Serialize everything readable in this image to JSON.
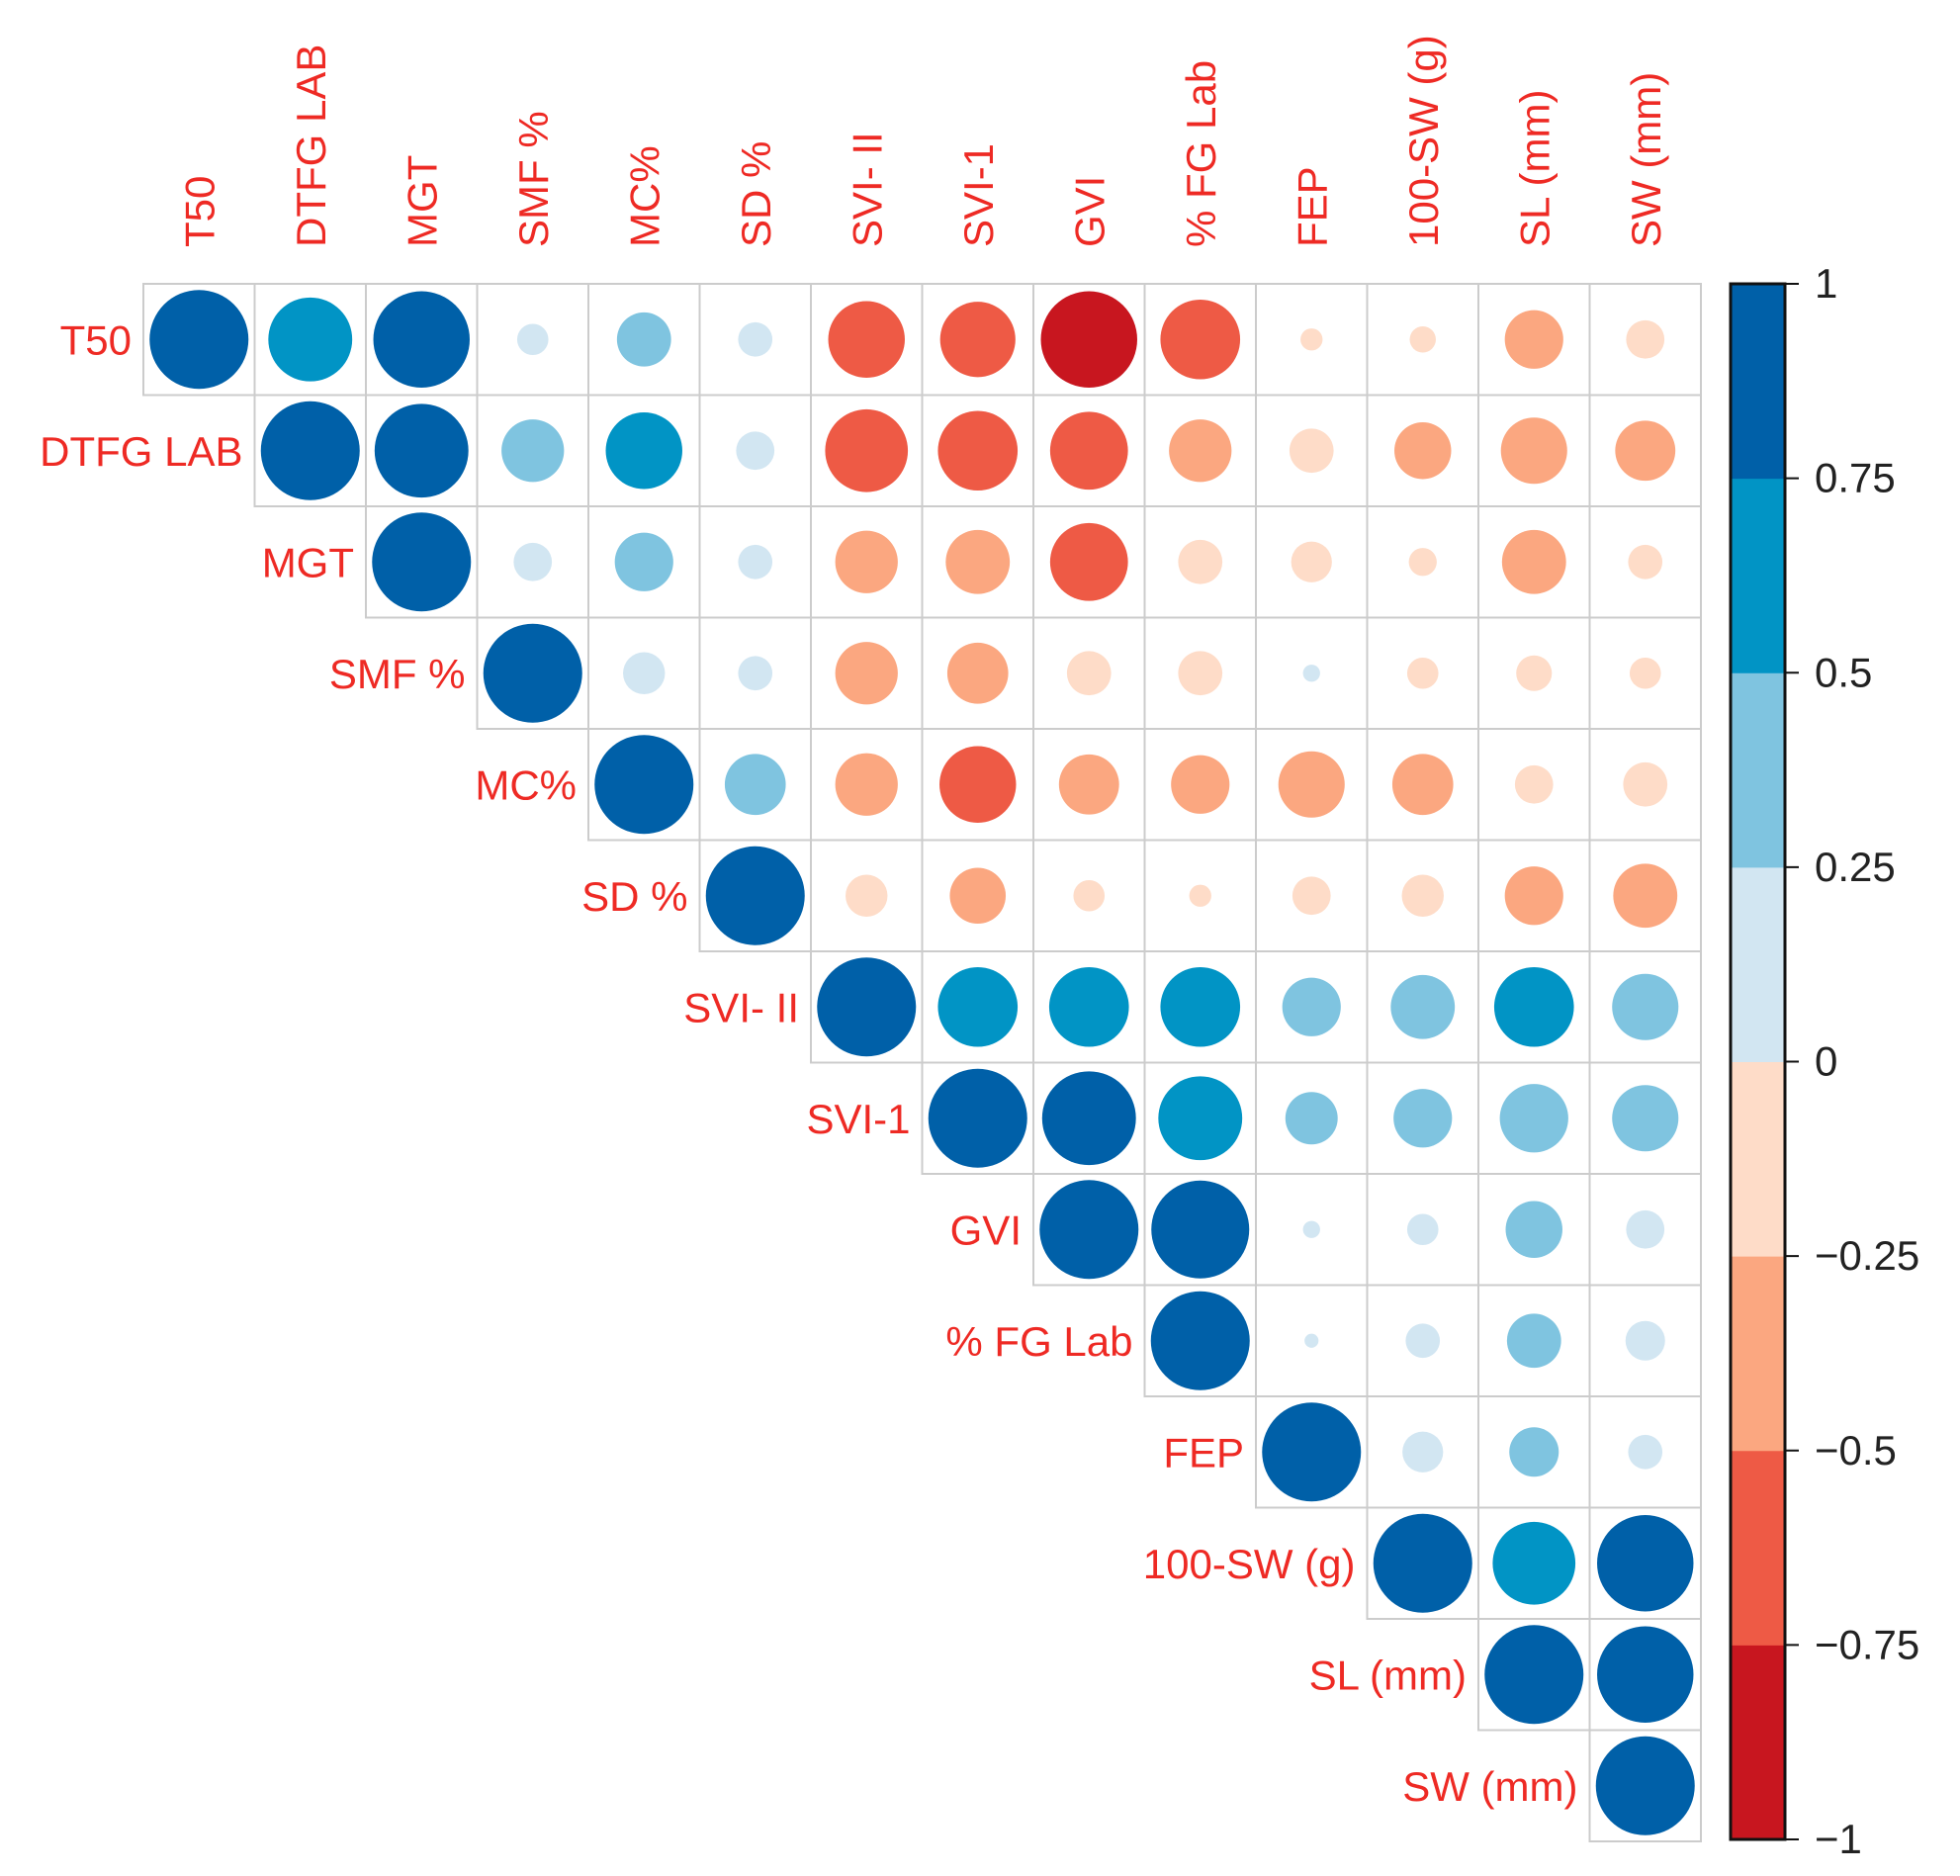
{
  "chart_data": {
    "type": "heatmap",
    "subtype": "correlation-circle-upper",
    "variables": [
      "T50",
      "DTFG LAB",
      "MGT",
      "SMF %",
      "MC%",
      "SD %",
      "SVI- II",
      "SVI-1",
      "GVI",
      "% FG Lab",
      "FEP",
      "100-SW (g)",
      "SL (mm)",
      "SW (mm)"
    ],
    "matrix_upper": [
      [
        1,
        0.72,
        0.95,
        0.1,
        0.3,
        0.12,
        -0.6,
        -0.58,
        -0.95,
        -0.65,
        -0.05,
        -0.07,
        -0.35,
        -0.15
      ],
      [
        1,
        0.9,
        0.4,
        0.6,
        0.15,
        -0.7,
        -0.65,
        -0.62,
        -0.4,
        -0.2,
        -0.33,
        -0.45,
        -0.37
      ],
      [
        1,
        0.15,
        0.35,
        0.12,
        -0.4,
        -0.42,
        -0.62,
        -0.2,
        -0.17,
        -0.08,
        -0.42,
        -0.12
      ],
      [
        1,
        0.18,
        0.12,
        -0.4,
        -0.38,
        -0.2,
        -0.2,
        0.03,
        -0.1,
        -0.13,
        -0.1
      ],
      [
        1,
        0.38,
        -0.4,
        -0.6,
        -0.37,
        -0.35,
        -0.45,
        -0.38,
        -0.15,
        -0.2
      ],
      [
        1,
        -0.18,
        -0.32,
        -0.1,
        -0.05,
        -0.15,
        -0.18,
        -0.35,
        -0.42
      ],
      [
        1,
        0.65,
        0.65,
        0.65,
        0.35,
        0.42,
        0.65,
        0.45
      ],
      [
        1,
        0.9,
        0.72,
        0.28,
        0.35,
        0.48,
        0.45
      ],
      [
        1,
        0.98,
        0.03,
        0.1,
        0.33,
        0.15
      ],
      [
        1,
        0.02,
        0.12,
        0.3,
        0.16
      ],
      [
        1,
        0.17,
        0.25,
        0.12
      ],
      [
        1,
        0.7,
        0.95
      ],
      [
        1,
        0.95
      ],
      [
        1
      ]
    ],
    "colorbar": {
      "range": [
        -1,
        1
      ],
      "ticks": [
        "1",
        "0.75",
        "0.5",
        "0.25",
        "0",
        "−0.25",
        "−0.5",
        "−0.75",
        "−1"
      ],
      "tick_values": [
        1,
        0.75,
        0.5,
        0.25,
        0,
        -0.25,
        -0.5,
        -0.75,
        -1
      ],
      "bin_colors": [
        "#C8161F",
        "#EE5A45",
        "#FBA780",
        "#FEDCC8",
        "#D2E6F2",
        "#7FC4E0",
        "#0194C5",
        "#0060A8"
      ],
      "placement": "right"
    },
    "label_color": "#EE2A24",
    "grid_color": "#CCCCCC"
  }
}
